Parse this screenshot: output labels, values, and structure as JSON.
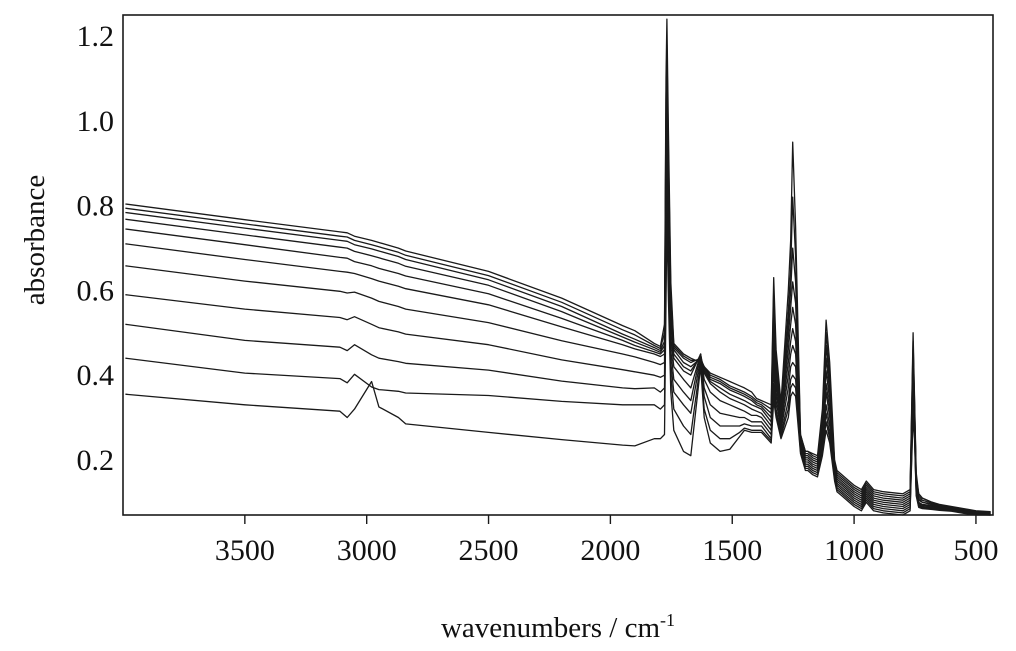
{
  "chart_data": {
    "type": "line",
    "xlabel_text": "wavenumbers / cm",
    "xlabel_sup": "-1",
    "ylabel": "absorbance",
    "xlim": [
      4000,
      430
    ],
    "ylim": [
      0.07,
      1.25
    ],
    "x_reversed": true,
    "grid": false,
    "x_ticks": [
      3500,
      3000,
      2500,
      2000,
      1500,
      1000,
      500
    ],
    "x_tick_labels": [
      "3500",
      "3000",
      "2500",
      "2000",
      "1500",
      "1000",
      "500"
    ],
    "y_ticks": [
      0.2,
      0.4,
      0.6,
      0.8,
      1.0,
      1.2
    ],
    "y_tick_labels": [
      "0.2",
      "0.4",
      "0.6",
      "0.8",
      "1.0",
      "1.2"
    ],
    "x": [
      3990,
      3500,
      3110,
      3080,
      3050,
      2980,
      2950,
      2870,
      2840,
      2500,
      2200,
      1950,
      1900,
      1820,
      1795,
      1778,
      1772,
      1768,
      1762,
      1752,
      1740,
      1700,
      1670,
      1630,
      1615,
      1590,
      1550,
      1510,
      1470,
      1450,
      1420,
      1400,
      1380,
      1340,
      1330,
      1320,
      1300,
      1270,
      1260,
      1252,
      1240,
      1220,
      1210,
      1200,
      1190,
      1170,
      1150,
      1130,
      1115,
      1100,
      1080,
      1070,
      1050,
      1020,
      1000,
      970,
      950,
      920,
      880,
      800,
      770,
      758,
      752,
      745,
      735,
      720,
      680,
      650,
      600,
      550,
      500,
      440
    ],
    "series": [
      {
        "values": [
          0.804,
          0.767,
          0.738,
          0.736,
          0.728,
          0.718,
          0.713,
          0.7,
          0.693,
          0.645,
          0.582,
          0.517,
          0.505,
          0.475,
          0.468,
          0.52,
          1.1,
          1.24,
          0.98,
          0.62,
          0.475,
          0.45,
          0.44,
          0.43,
          0.42,
          0.405,
          0.395,
          0.385,
          0.375,
          0.37,
          0.36,
          0.345,
          0.34,
          0.33,
          0.63,
          0.46,
          0.335,
          0.6,
          0.72,
          0.95,
          0.75,
          0.26,
          0.24,
          0.22,
          0.22,
          0.215,
          0.21,
          0.32,
          0.53,
          0.43,
          0.2,
          0.175,
          0.165,
          0.15,
          0.14,
          0.13,
          0.15,
          0.13,
          0.125,
          0.12,
          0.13,
          0.5,
          0.35,
          0.17,
          0.12,
          0.11,
          0.1,
          0.095,
          0.09,
          0.085,
          0.08,
          0.078
        ]
      },
      {
        "values": [
          0.794,
          0.757,
          0.728,
          0.726,
          0.718,
          0.708,
          0.703,
          0.69,
          0.683,
          0.635,
          0.572,
          0.507,
          0.495,
          0.47,
          0.463,
          0.5,
          1.05,
          1.18,
          0.93,
          0.6,
          0.47,
          0.445,
          0.435,
          0.435,
          0.42,
          0.4,
          0.39,
          0.375,
          0.365,
          0.36,
          0.35,
          0.34,
          0.335,
          0.32,
          0.6,
          0.44,
          0.33,
          0.55,
          0.65,
          0.82,
          0.68,
          0.26,
          0.24,
          0.22,
          0.22,
          0.21,
          0.205,
          0.3,
          0.5,
          0.4,
          0.19,
          0.17,
          0.16,
          0.145,
          0.135,
          0.125,
          0.145,
          0.125,
          0.12,
          0.115,
          0.125,
          0.48,
          0.34,
          0.16,
          0.12,
          0.11,
          0.1,
          0.094,
          0.088,
          0.083,
          0.079,
          0.077
        ]
      },
      {
        "values": [
          0.784,
          0.747,
          0.718,
          0.716,
          0.708,
          0.698,
          0.693,
          0.68,
          0.673,
          0.625,
          0.562,
          0.497,
          0.485,
          0.465,
          0.458,
          0.48,
          1.0,
          1.13,
          0.89,
          0.58,
          0.465,
          0.44,
          0.43,
          0.44,
          0.42,
          0.395,
          0.385,
          0.37,
          0.36,
          0.355,
          0.345,
          0.335,
          0.33,
          0.31,
          0.57,
          0.43,
          0.32,
          0.52,
          0.6,
          0.7,
          0.62,
          0.25,
          0.235,
          0.215,
          0.215,
          0.205,
          0.2,
          0.29,
          0.47,
          0.38,
          0.19,
          0.165,
          0.155,
          0.14,
          0.13,
          0.12,
          0.14,
          0.12,
          0.115,
          0.11,
          0.12,
          0.46,
          0.33,
          0.155,
          0.115,
          0.105,
          0.098,
          0.092,
          0.087,
          0.082,
          0.078,
          0.076
        ]
      },
      {
        "values": [
          0.768,
          0.731,
          0.702,
          0.7,
          0.692,
          0.682,
          0.677,
          0.664,
          0.657,
          0.612,
          0.55,
          0.49,
          0.478,
          0.46,
          0.454,
          0.47,
          0.95,
          1.08,
          0.86,
          0.56,
          0.46,
          0.43,
          0.42,
          0.44,
          0.415,
          0.39,
          0.38,
          0.365,
          0.355,
          0.35,
          0.34,
          0.33,
          0.325,
          0.3,
          0.54,
          0.42,
          0.31,
          0.49,
          0.56,
          0.62,
          0.57,
          0.25,
          0.23,
          0.21,
          0.21,
          0.2,
          0.195,
          0.28,
          0.44,
          0.36,
          0.185,
          0.16,
          0.15,
          0.135,
          0.125,
          0.115,
          0.135,
          0.115,
          0.11,
          0.105,
          0.115,
          0.44,
          0.32,
          0.15,
          0.11,
          0.1,
          0.096,
          0.09,
          0.086,
          0.081,
          0.077,
          0.075
        ]
      },
      {
        "values": [
          0.745,
          0.708,
          0.678,
          0.676,
          0.668,
          0.658,
          0.652,
          0.64,
          0.634,
          0.592,
          0.534,
          0.482,
          0.47,
          0.455,
          0.45,
          0.46,
          0.9,
          1.03,
          0.82,
          0.54,
          0.45,
          0.42,
          0.41,
          0.445,
          0.41,
          0.385,
          0.37,
          0.355,
          0.345,
          0.34,
          0.33,
          0.325,
          0.32,
          0.29,
          0.5,
          0.4,
          0.3,
          0.46,
          0.52,
          0.56,
          0.52,
          0.245,
          0.225,
          0.205,
          0.205,
          0.195,
          0.19,
          0.27,
          0.41,
          0.34,
          0.18,
          0.155,
          0.145,
          0.13,
          0.12,
          0.11,
          0.13,
          0.11,
          0.105,
          0.1,
          0.11,
          0.42,
          0.31,
          0.145,
          0.105,
          0.1,
          0.094,
          0.088,
          0.085,
          0.08,
          0.076,
          0.074
        ]
      },
      {
        "values": [
          0.71,
          0.673,
          0.645,
          0.643,
          0.64,
          0.628,
          0.622,
          0.61,
          0.604,
          0.566,
          0.514,
          0.472,
          0.462,
          0.45,
          0.444,
          0.45,
          0.85,
          0.98,
          0.78,
          0.52,
          0.44,
          0.41,
          0.4,
          0.45,
          0.405,
          0.38,
          0.36,
          0.345,
          0.335,
          0.33,
          0.32,
          0.315,
          0.31,
          0.28,
          0.47,
          0.38,
          0.29,
          0.43,
          0.48,
          0.51,
          0.48,
          0.24,
          0.22,
          0.2,
          0.2,
          0.19,
          0.185,
          0.26,
          0.38,
          0.32,
          0.175,
          0.15,
          0.14,
          0.125,
          0.115,
          0.105,
          0.125,
          0.105,
          0.1,
          0.095,
          0.105,
          0.4,
          0.3,
          0.14,
          0.1,
          0.095,
          0.092,
          0.087,
          0.084,
          0.079,
          0.075,
          0.073
        ]
      },
      {
        "values": [
          0.658,
          0.622,
          0.598,
          0.594,
          0.596,
          0.582,
          0.574,
          0.562,
          0.556,
          0.524,
          0.481,
          0.45,
          0.443,
          0.43,
          0.425,
          0.43,
          0.8,
          0.94,
          0.74,
          0.49,
          0.42,
          0.39,
          0.37,
          0.45,
          0.39,
          0.36,
          0.34,
          0.33,
          0.32,
          0.315,
          0.305,
          0.305,
          0.3,
          0.27,
          0.44,
          0.36,
          0.28,
          0.4,
          0.45,
          0.47,
          0.45,
          0.235,
          0.215,
          0.195,
          0.195,
          0.185,
          0.18,
          0.25,
          0.36,
          0.3,
          0.17,
          0.145,
          0.135,
          0.12,
          0.11,
          0.1,
          0.12,
          0.1,
          0.095,
          0.09,
          0.1,
          0.38,
          0.29,
          0.135,
          0.098,
          0.093,
          0.09,
          0.086,
          0.083,
          0.078,
          0.074,
          0.072
        ]
      },
      {
        "values": [
          0.59,
          0.556,
          0.536,
          0.531,
          0.538,
          0.52,
          0.512,
          0.502,
          0.497,
          0.472,
          0.436,
          0.413,
          0.408,
          0.4,
          0.395,
          0.4,
          0.74,
          0.9,
          0.7,
          0.46,
          0.39,
          0.36,
          0.34,
          0.45,
          0.37,
          0.33,
          0.31,
          0.305,
          0.3,
          0.3,
          0.29,
          0.29,
          0.29,
          0.26,
          0.41,
          0.34,
          0.27,
          0.37,
          0.42,
          0.43,
          0.42,
          0.23,
          0.21,
          0.19,
          0.19,
          0.18,
          0.175,
          0.24,
          0.33,
          0.28,
          0.165,
          0.14,
          0.13,
          0.115,
          0.105,
          0.095,
          0.115,
          0.095,
          0.09,
          0.085,
          0.095,
          0.36,
          0.28,
          0.13,
          0.095,
          0.09,
          0.088,
          0.085,
          0.082,
          0.077,
          0.073,
          0.071
        ]
      },
      {
        "values": [
          0.52,
          0.482,
          0.466,
          0.458,
          0.472,
          0.448,
          0.44,
          0.432,
          0.428,
          0.412,
          0.386,
          0.37,
          0.368,
          0.37,
          0.36,
          0.37,
          0.68,
          0.86,
          0.66,
          0.43,
          0.36,
          0.33,
          0.31,
          0.44,
          0.35,
          0.3,
          0.28,
          0.28,
          0.28,
          0.285,
          0.28,
          0.28,
          0.28,
          0.25,
          0.38,
          0.32,
          0.26,
          0.34,
          0.39,
          0.4,
          0.39,
          0.225,
          0.205,
          0.185,
          0.185,
          0.175,
          0.17,
          0.23,
          0.31,
          0.26,
          0.16,
          0.135,
          0.125,
          0.11,
          0.1,
          0.09,
          0.11,
          0.09,
          0.085,
          0.08,
          0.09,
          0.34,
          0.27,
          0.125,
          0.092,
          0.088,
          0.086,
          0.084,
          0.081,
          0.076,
          0.072,
          0.07
        ]
      },
      {
        "values": [
          0.44,
          0.405,
          0.392,
          0.382,
          0.402,
          0.372,
          0.366,
          0.362,
          0.358,
          0.352,
          0.338,
          0.33,
          0.33,
          0.33,
          0.32,
          0.33,
          0.62,
          0.82,
          0.62,
          0.4,
          0.32,
          0.28,
          0.26,
          0.43,
          0.32,
          0.27,
          0.25,
          0.25,
          0.265,
          0.275,
          0.27,
          0.27,
          0.27,
          0.245,
          0.36,
          0.31,
          0.255,
          0.32,
          0.37,
          0.38,
          0.37,
          0.22,
          0.2,
          0.18,
          0.18,
          0.17,
          0.165,
          0.22,
          0.29,
          0.25,
          0.155,
          0.13,
          0.12,
          0.105,
          0.095,
          0.085,
          0.105,
          0.085,
          0.08,
          0.075,
          0.085,
          0.32,
          0.26,
          0.12,
          0.09,
          0.086,
          0.084,
          0.082,
          0.08,
          0.075,
          0.071,
          0.069
        ]
      },
      {
        "values": [
          0.355,
          0.33,
          0.315,
          0.3,
          0.32,
          0.385,
          0.325,
          0.3,
          0.285,
          0.265,
          0.248,
          0.235,
          0.233,
          0.25,
          0.25,
          0.26,
          0.57,
          0.78,
          0.58,
          0.36,
          0.27,
          0.22,
          0.21,
          0.42,
          0.3,
          0.24,
          0.22,
          0.225,
          0.255,
          0.27,
          0.265,
          0.265,
          0.265,
          0.24,
          0.34,
          0.3,
          0.25,
          0.3,
          0.35,
          0.36,
          0.35,
          0.215,
          0.195,
          0.175,
          0.175,
          0.165,
          0.16,
          0.21,
          0.27,
          0.24,
          0.15,
          0.125,
          0.115,
          0.1,
          0.09,
          0.08,
          0.1,
          0.08,
          0.075,
          0.07,
          0.08,
          0.3,
          0.25,
          0.115,
          0.088,
          0.085,
          0.083,
          0.081,
          0.079,
          0.074,
          0.07,
          0.068
        ]
      }
    ]
  }
}
